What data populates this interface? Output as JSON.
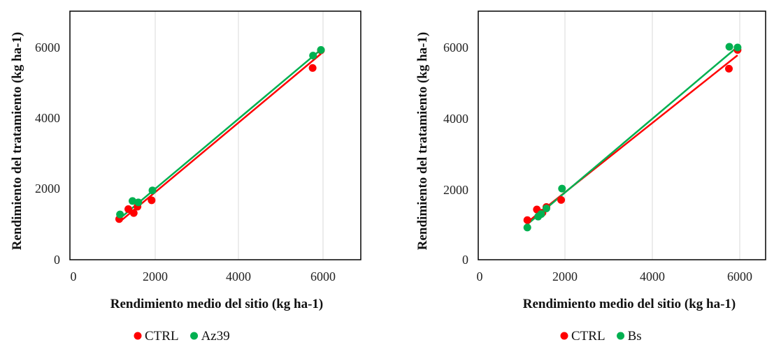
{
  "chart_data": [
    {
      "type": "scatter",
      "title": "",
      "xlabel": "Rendimiento medio del sitio (kg ha-1)",
      "ylabel": "Rendimiento del tratamiento (kg ha-1)",
      "xlim": [
        0,
        7000
      ],
      "ylim": [
        0,
        7000
      ],
      "x_ticks": [
        "0",
        "2000",
        "4000",
        "6000"
      ],
      "y_ticks": [
        "0",
        "2000",
        "4000",
        "6000"
      ],
      "grid": "vertical",
      "legend_position": "bottom",
      "series": [
        {
          "name": "CTRL",
          "color": "#ff0000",
          "points": [
            [
              1100,
              1150
            ],
            [
              1320,
              1430
            ],
            [
              1450,
              1320
            ],
            [
              1540,
              1500
            ],
            [
              1880,
              1680
            ],
            [
              5750,
              5420
            ],
            [
              5950,
              5920
            ]
          ],
          "trendline": [
            [
              1100,
              1060
            ],
            [
              5950,
              5820
            ]
          ]
        },
        {
          "name": "Az39",
          "color": "#00b050",
          "points": [
            [
              1120,
              1280
            ],
            [
              1420,
              1660
            ],
            [
              1560,
              1620
            ],
            [
              1900,
              1960
            ],
            [
              5760,
              5770
            ],
            [
              5950,
              5930
            ]
          ],
          "trendline": [
            [
              1120,
              1170
            ],
            [
              5950,
              5940
            ]
          ]
        }
      ]
    },
    {
      "type": "scatter",
      "title": "",
      "xlabel": "Rendimiento medio del sitio (kg ha-1)",
      "ylabel": "Rendimiento del tratamiento (kg ha-1)",
      "xlim": [
        0,
        7000
      ],
      "ylim": [
        0,
        7000
      ],
      "x_ticks": [
        "0",
        "2000",
        "4000",
        "6000"
      ],
      "y_ticks": [
        "0",
        "2000",
        "4000",
        "6000"
      ],
      "grid": "vertical",
      "legend_position": "bottom",
      "series": [
        {
          "name": "CTRL",
          "color": "#ff0000",
          "points": [
            [
              1100,
              1120
            ],
            [
              1320,
              1420
            ],
            [
              1450,
              1330
            ],
            [
              1540,
              1490
            ],
            [
              1880,
              1690
            ],
            [
              5750,
              5400
            ],
            [
              5950,
              5930
            ]
          ],
          "trendline": [
            [
              1100,
              1060
            ],
            [
              5950,
              5780
            ]
          ]
        },
        {
          "name": "Bs",
          "color": "#00b050",
          "points": [
            [
              1100,
              910
            ],
            [
              1350,
              1220
            ],
            [
              1420,
              1290
            ],
            [
              1540,
              1450
            ],
            [
              1900,
              2010
            ],
            [
              5760,
              6020
            ],
            [
              5950,
              6000
            ]
          ],
          "trendline": [
            [
              1100,
              1000
            ],
            [
              5950,
              6020
            ]
          ]
        }
      ]
    }
  ]
}
